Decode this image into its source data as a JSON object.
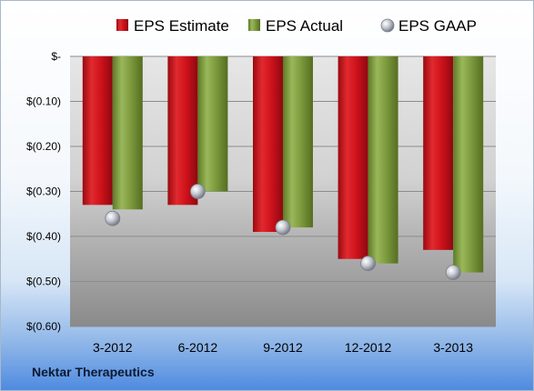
{
  "company": "Nektar Therapeutics",
  "chart_data": {
    "type": "bar",
    "categories": [
      "3-2012",
      "6-2012",
      "9-2012",
      "12-2012",
      "3-2013"
    ],
    "series": [
      {
        "name": "EPS Estimate",
        "values": [
          -0.33,
          -0.33,
          -0.39,
          -0.45,
          -0.43
        ],
        "color": "#d0121b",
        "style": "bar"
      },
      {
        "name": "EPS Actual",
        "values": [
          -0.34,
          -0.3,
          -0.38,
          -0.46,
          -0.48
        ],
        "color": "#7d9a3e",
        "style": "bar"
      },
      {
        "name": "EPS GAAP",
        "values": [
          -0.36,
          -0.3,
          -0.38,
          -0.46,
          -0.48
        ],
        "color": "#b4b9c4",
        "style": "marker"
      }
    ],
    "yticks": [
      "$-",
      "$(0.10)",
      "$(0.20)",
      "$(0.30)",
      "$(0.40)",
      "$(0.50)",
      "$(0.60)"
    ],
    "ylim": [
      -0.6,
      0
    ],
    "grid": true,
    "legend_position": "top"
  }
}
